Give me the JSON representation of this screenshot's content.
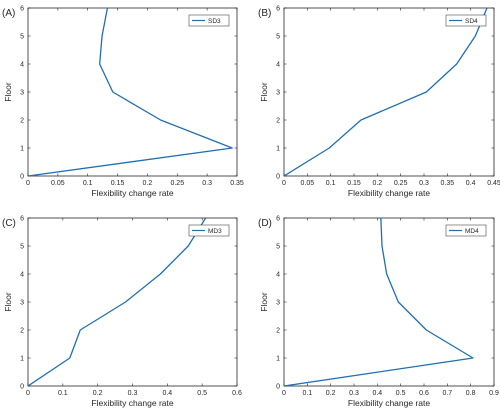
{
  "line_color": "#1f6fb2",
  "chart_data": [
    {
      "type": "line",
      "panel_label": "(A)",
      "xlabel": "Flexibility change rate",
      "ylabel": "Floor",
      "xlim": [
        0,
        0.35
      ],
      "ylim": [
        0,
        6
      ],
      "xticks": [
        0,
        0.05,
        0.1,
        0.15,
        0.2,
        0.25,
        0.3,
        0.35
      ],
      "xtick_labels": [
        "0",
        "0.05",
        "0.1",
        "0.15",
        "0.2",
        "0.25",
        "0.3",
        "0.35"
      ],
      "yticks": [
        0,
        1,
        2,
        3,
        4,
        5,
        6
      ],
      "legend_loc": "top-right",
      "grid": false,
      "series": [
        {
          "name": "SD3",
          "x": [
            0,
            0.342,
            0.222,
            0.142,
            0.12,
            0.124,
            0.133
          ],
          "y": [
            0,
            1,
            2,
            3,
            4,
            5,
            6
          ]
        }
      ]
    },
    {
      "type": "line",
      "panel_label": "(B)",
      "xlabel": "Flexibility change rate",
      "ylabel": "Floor",
      "xlim": [
        0,
        0.45
      ],
      "ylim": [
        0,
        6
      ],
      "xticks": [
        0,
        0.05,
        0.1,
        0.15,
        0.2,
        0.25,
        0.3,
        0.35,
        0.4,
        0.45
      ],
      "xtick_labels": [
        "0",
        "0.05",
        "0.1",
        "0.15",
        "0.2",
        "0.25",
        "0.3",
        "0.35",
        "0.4",
        "0.45"
      ],
      "yticks": [
        0,
        1,
        2,
        3,
        4,
        5,
        6
      ],
      "legend_loc": "top-right",
      "grid": false,
      "series": [
        {
          "name": "SD4",
          "x": [
            0,
            0.097,
            0.165,
            0.305,
            0.37,
            0.41,
            0.435
          ],
          "y": [
            0,
            1,
            2,
            3,
            4,
            5,
            6
          ]
        }
      ]
    },
    {
      "type": "line",
      "panel_label": "(C)",
      "xlabel": "Flexibility change rate",
      "ylabel": "Floor",
      "xlim": [
        0,
        0.6
      ],
      "ylim": [
        0,
        6
      ],
      "xticks": [
        0,
        0.1,
        0.2,
        0.3,
        0.4,
        0.5,
        0.6
      ],
      "xtick_labels": [
        "0",
        "0.1",
        "0.2",
        "0.3",
        "0.4",
        "0.5",
        "0.6"
      ],
      "yticks": [
        0,
        1,
        2,
        3,
        4,
        5,
        6
      ],
      "legend_loc": "top-right",
      "grid": false,
      "series": [
        {
          "name": "MD3",
          "x": [
            0,
            0.12,
            0.15,
            0.28,
            0.38,
            0.46,
            0.51
          ],
          "y": [
            0,
            1,
            2,
            3,
            4,
            5,
            6
          ]
        }
      ]
    },
    {
      "type": "line",
      "panel_label": "(D)",
      "xlabel": "Flexibility change rate",
      "ylabel": "Floor",
      "xlim": [
        0,
        0.9
      ],
      "ylim": [
        0,
        6
      ],
      "xticks": [
        0,
        0.1,
        0.2,
        0.3,
        0.4,
        0.5,
        0.6,
        0.7,
        0.8,
        0.9
      ],
      "xtick_labels": [
        "0",
        "0.1",
        "0.2",
        "0.3",
        "0.4",
        "0.5",
        "0.6",
        "0.7",
        "0.8",
        "0.9"
      ],
      "yticks": [
        0,
        1,
        2,
        3,
        4,
        5,
        6
      ],
      "legend_loc": "top-right",
      "grid": false,
      "series": [
        {
          "name": "MD4",
          "x": [
            0,
            0.81,
            0.61,
            0.49,
            0.44,
            0.42,
            0.415
          ],
          "y": [
            0,
            1,
            2,
            3,
            4,
            5,
            6
          ]
        }
      ]
    }
  ]
}
